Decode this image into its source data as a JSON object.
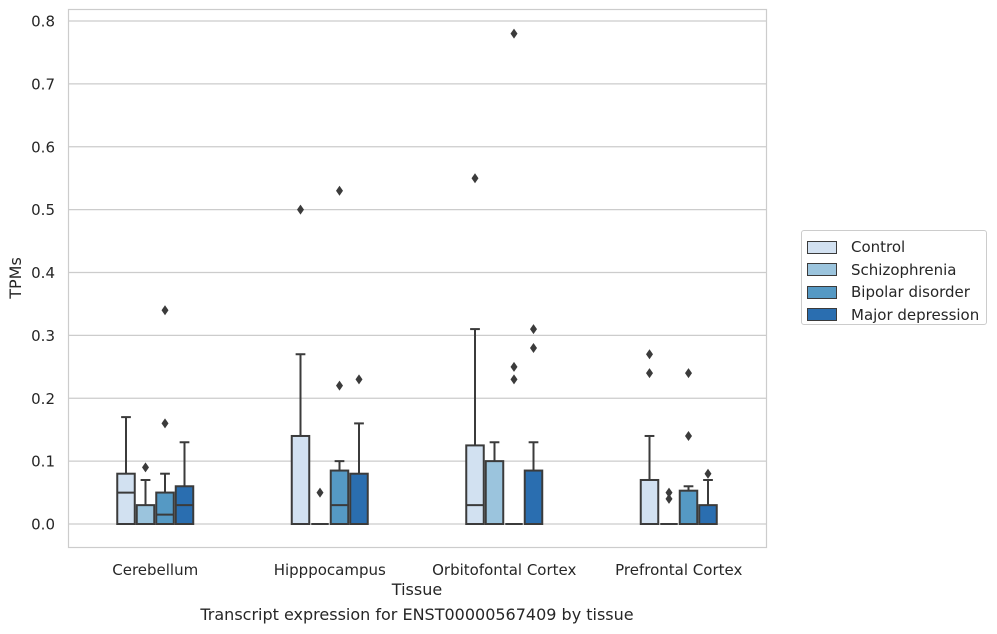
{
  "chart_data": {
    "type": "box",
    "title": "",
    "caption": "Transcript expression for ENST00000567409 by tissue",
    "xlabel": "Tissue",
    "ylabel": "TPMs",
    "ylim": [
      -0.04,
      0.82
    ],
    "yticks": [
      "0.0",
      "0.1",
      "0.2",
      "0.3",
      "0.4",
      "0.5",
      "0.6",
      "0.7",
      "0.8"
    ],
    "grid": true,
    "legend_position": "right",
    "categories": [
      "Cerebellum",
      "Hipppocampus",
      "Orbitofontal Cortex",
      "Prefrontal Cortex"
    ],
    "series": [
      {
        "name": "Control",
        "color": "#d2e1f1",
        "boxes": [
          {
            "q1": 0.0,
            "median": 0.05,
            "q3": 0.08,
            "whisker_low": 0.0,
            "whisker_high": 0.17,
            "outliers": []
          },
          {
            "q1": 0.0,
            "median": 0.0,
            "q3": 0.14,
            "whisker_low": 0.0,
            "whisker_high": 0.27,
            "outliers": [
              0.5
            ]
          },
          {
            "q1": 0.0,
            "median": 0.03,
            "q3": 0.125,
            "whisker_low": 0.0,
            "whisker_high": 0.31,
            "outliers": [
              0.55
            ]
          },
          {
            "q1": 0.0,
            "median": 0.0,
            "q3": 0.07,
            "whisker_low": 0.0,
            "whisker_high": 0.14,
            "outliers": [
              0.24,
              0.27
            ]
          }
        ]
      },
      {
        "name": "Schizophrenia",
        "color": "#9bc4dd",
        "boxes": [
          {
            "q1": 0.0,
            "median": 0.0,
            "q3": 0.03,
            "whisker_low": 0.0,
            "whisker_high": 0.07,
            "outliers": [
              0.09
            ]
          },
          {
            "q1": 0.0,
            "median": 0.0,
            "q3": 0.0,
            "whisker_low": 0.0,
            "whisker_high": 0.0,
            "outliers": [
              0.05
            ]
          },
          {
            "q1": 0.0,
            "median": 0.0,
            "q3": 0.1,
            "whisker_low": 0.0,
            "whisker_high": 0.13,
            "outliers": []
          },
          {
            "q1": 0.0,
            "median": 0.0,
            "q3": 0.0,
            "whisker_low": 0.0,
            "whisker_high": 0.0,
            "outliers": [
              0.04,
              0.05
            ]
          }
        ]
      },
      {
        "name": "Bipolar disorder",
        "color": "#5599c4",
        "boxes": [
          {
            "q1": 0.0,
            "median": 0.015,
            "q3": 0.05,
            "whisker_low": 0.0,
            "whisker_high": 0.08,
            "outliers": [
              0.16,
              0.34
            ]
          },
          {
            "q1": 0.0,
            "median": 0.03,
            "q3": 0.085,
            "whisker_low": 0.0,
            "whisker_high": 0.1,
            "outliers": [
              0.22,
              0.53
            ]
          },
          {
            "q1": 0.0,
            "median": 0.0,
            "q3": 0.0,
            "whisker_low": 0.0,
            "whisker_high": 0.0,
            "outliers": [
              0.23,
              0.25,
              0.78
            ]
          },
          {
            "q1": 0.0,
            "median": 0.0,
            "q3": 0.053,
            "whisker_low": 0.0,
            "whisker_high": 0.06,
            "outliers": [
              0.14,
              0.24
            ]
          }
        ]
      },
      {
        "name": "Major depression",
        "color": "#2a6eb0",
        "boxes": [
          {
            "q1": 0.0,
            "median": 0.03,
            "q3": 0.06,
            "whisker_low": 0.0,
            "whisker_high": 0.13,
            "outliers": []
          },
          {
            "q1": 0.0,
            "median": 0.0,
            "q3": 0.08,
            "whisker_low": 0.0,
            "whisker_high": 0.16,
            "outliers": [
              0.23
            ]
          },
          {
            "q1": 0.0,
            "median": 0.0,
            "q3": 0.085,
            "whisker_low": 0.0,
            "whisker_high": 0.13,
            "outliers": [
              0.28,
              0.31
            ]
          },
          {
            "q1": 0.0,
            "median": 0.0,
            "q3": 0.03,
            "whisker_low": 0.0,
            "whisker_high": 0.07,
            "outliers": [
              0.08
            ]
          }
        ]
      }
    ]
  }
}
